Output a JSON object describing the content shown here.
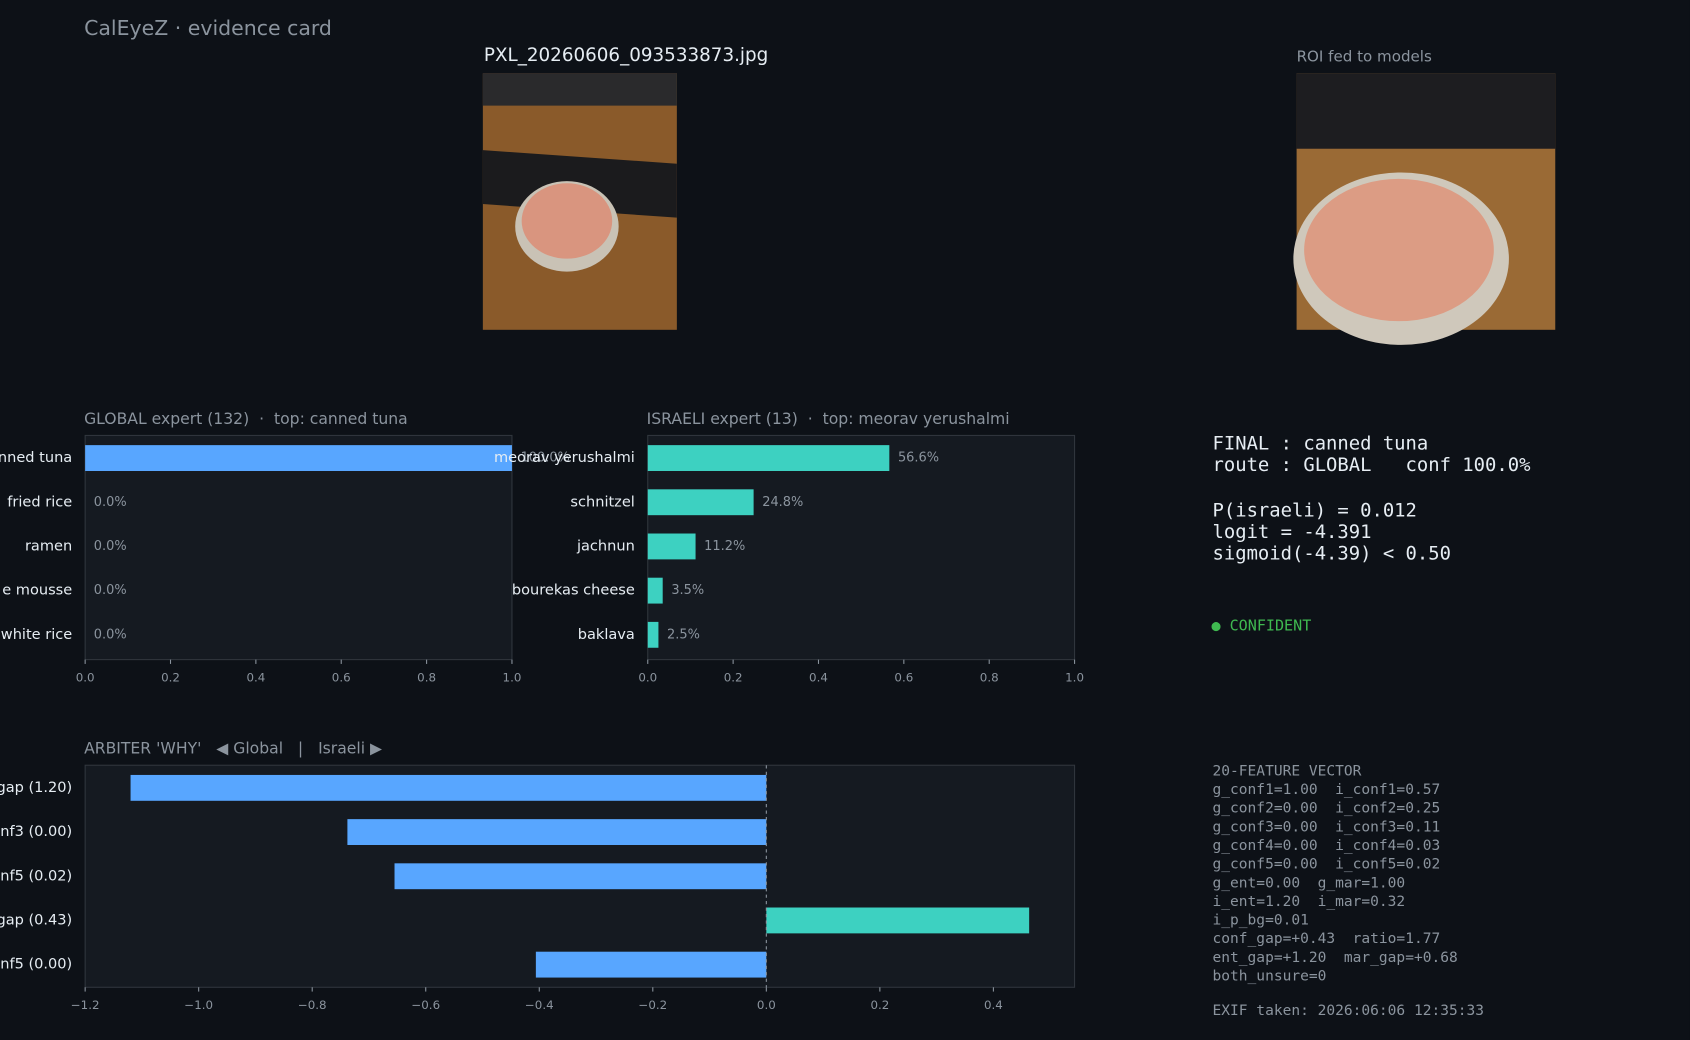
{
  "header": {
    "title": "CalEyeZ · evidence card"
  },
  "photo": {
    "filename": "PXL_20260606_093533873.jpg"
  },
  "roi": {
    "caption": "ROI fed to models"
  },
  "chart_data": [
    {
      "type": "bar",
      "orientation": "horizontal",
      "title": "GLOBAL expert (132)  ·  top: canned tuna",
      "categories": [
        "nned tuna",
        "fried rice",
        "ramen",
        "e mousse",
        "white rice"
      ],
      "values": [
        1.0,
        0.0,
        0.0,
        0.0,
        0.0
      ],
      "value_labels": [
        "100.0%",
        "0.0%",
        "0.0%",
        "0.0%",
        "0.0%"
      ],
      "color": "#58a6ff",
      "xlim": [
        0,
        1
      ],
      "xticks": [
        {
          "value": 0,
          "label": "0.0"
        },
        0.2,
        0.4,
        0.6,
        0.8,
        {
          "value": 1,
          "label": "1.0"
        }
      ]
    },
    {
      "type": "bar",
      "orientation": "horizontal",
      "title": "ISRAELI expert (13)  ·  top: meorav yerushalmi",
      "categories": [
        "meorav yerushalmi",
        "schnitzel",
        "jachnun",
        "bourekas cheese",
        "baklava"
      ],
      "values": [
        0.566,
        0.248,
        0.112,
        0.035,
        0.025
      ],
      "value_labels": [
        "56.6%",
        "24.8%",
        "11.2%",
        "3.5%",
        "2.5%"
      ],
      "color": "#3dd1c1",
      "xlim": [
        0,
        1
      ],
      "xticks": [
        {
          "value": 0,
          "label": "0.0"
        },
        0.2,
        0.4,
        0.6,
        0.8,
        {
          "value": 1,
          "label": "1.0"
        }
      ]
    },
    {
      "type": "bar",
      "orientation": "horizontal",
      "title": "ARBITER 'WHY'   ◀ Global   |   Israeli ▶",
      "categories": [
        "gap (1.20)",
        "onf3 (0.00)",
        "onf5 (0.02)",
        "gap (0.43)",
        "onf5 (0.00)"
      ],
      "values": [
        -1.12,
        -0.738,
        -0.655,
        0.463,
        -0.406
      ],
      "colors": [
        "#58a6ff",
        "#58a6ff",
        "#58a6ff",
        "#3dd1c1",
        "#58a6ff"
      ],
      "zero_line": true,
      "xlim": [
        -1.2,
        0.543
      ],
      "xticks": [
        {
          "value": -1.2,
          "label": "−1.2"
        },
        {
          "value": -1.0,
          "label": "−1.0"
        },
        {
          "value": -0.8,
          "label": "−0.8"
        },
        {
          "value": -0.6,
          "label": "−0.6"
        },
        {
          "value": -0.4,
          "label": "−0.4"
        },
        {
          "value": -0.2,
          "label": "−0.2"
        },
        {
          "value": 0,
          "label": "0.0"
        },
        0.2,
        0.4
      ]
    }
  ],
  "verdict": {
    "route_lines": [
      "FINAL : canned tuna",
      "route : GLOBAL   conf 100.0%"
    ],
    "gate_lines": [
      "P(israeli) = 0.012",
      "logit = -4.391",
      "sigmoid(-4.39) < 0.50"
    ],
    "status": "● CONFIDENT"
  },
  "features": {
    "title": "20-FEATURE VECTOR",
    "lines": [
      "g_conf1=1.00  i_conf1=0.57",
      "g_conf2=0.00  i_conf2=0.25",
      "g_conf3=0.00  i_conf3=0.11",
      "g_conf4=0.00  i_conf4=0.03",
      "g_conf5=0.00  i_conf5=0.02",
      "g_ent=0.00  g_mar=1.00",
      "i_ent=1.20  i_mar=0.32",
      "i_p_bg=0.01",
      "conf_gap=+0.43  ratio=1.77",
      "ent_gap=+1.20  mar_gap=+0.68",
      "both_unsure=0"
    ]
  },
  "exif": "EXIF taken: 2026:06:06 12:35:33"
}
